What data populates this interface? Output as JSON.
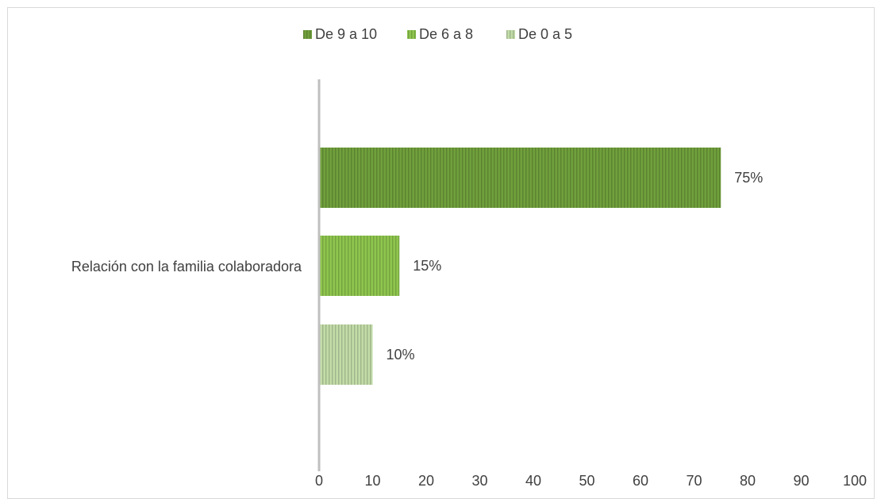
{
  "chart_data": {
    "type": "bar",
    "orientation": "horizontal",
    "title": "",
    "xlabel": "",
    "ylabel": "",
    "categories": [
      "Relación con la familia colaboradora"
    ],
    "series": [
      {
        "name": "De 9 a 10",
        "values": [
          75
        ],
        "label": "75%",
        "color": "#70a03c"
      },
      {
        "name": "De 6 a 8",
        "values": [
          15
        ],
        "label": "15%",
        "color": "#8ec54e"
      },
      {
        "name": "De 0 a 5",
        "values": [
          10
        ],
        "label": "10%",
        "color": "#c2dca8"
      }
    ],
    "xlim": [
      0,
      100
    ],
    "xticks": [
      "0",
      "10",
      "20",
      "30",
      "40",
      "50",
      "60",
      "70",
      "80",
      "90",
      "100"
    ],
    "grid": false,
    "legend_position": "top",
    "bar_pattern": "vertical-stripes"
  }
}
